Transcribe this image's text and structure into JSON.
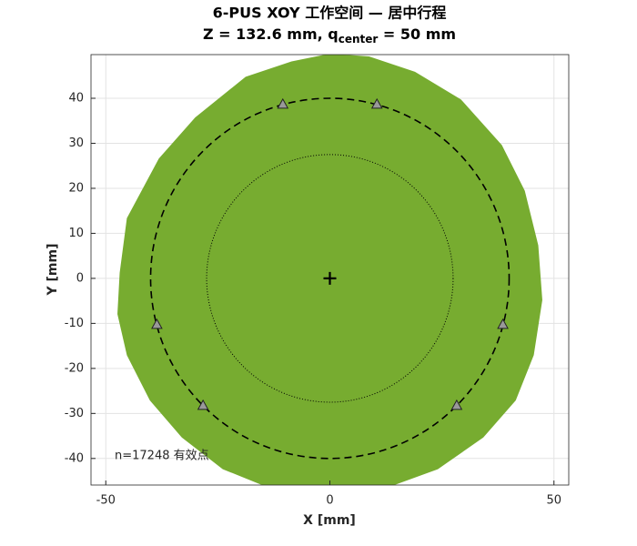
{
  "chart_data": {
    "type": "scatter",
    "title": "6-PUS XOY 工作空间 — 居中行程",
    "subtitle": {
      "before": "Z = 132.6 mm,  q",
      "subscript": "center",
      "after": " = 50 mm"
    },
    "x_label": "X [mm]",
    "y_label": "Y [mm]",
    "annotation": "n=17248 有效点",
    "xlim": [
      -53.3,
      53.3
    ],
    "ylim": [
      -45.9,
      49.7
    ],
    "xticks": [
      -50,
      0,
      50
    ],
    "yticks": [
      -40,
      -30,
      -20,
      -10,
      0,
      10,
      20,
      30,
      40
    ],
    "grid": true,
    "workspace": {
      "color": "#77ac30",
      "x": [
        0,
        -8.5,
        -18.7,
        -29.9,
        -38,
        -45.1,
        -46.7,
        -47.2,
        -45.1,
        -40,
        -32.9,
        -23.8,
        -14.6,
        13.8,
        24,
        34.1,
        41.3,
        45.3,
        47.2,
        46.3,
        43.3,
        38.2,
        29.1,
        18.9,
        8.7
      ],
      "y": [
        49.7,
        48,
        44.6,
        35.6,
        26.5,
        13.3,
        1.2,
        -7.9,
        -17,
        -27,
        -35.2,
        -42.2,
        -45.9,
        -45.9,
        -42.2,
        -35.2,
        -27,
        -17,
        -4.8,
        7.3,
        19.4,
        29.5,
        39.6,
        45.7,
        49.1
      ]
    },
    "circles": [
      {
        "r": 40,
        "style": "dashed",
        "color": "#000000"
      },
      {
        "r": 27.5,
        "style": "dotted",
        "color": "#000000"
      }
    ],
    "joints": {
      "color": "#999999",
      "x": [
        -10.5,
        10.5,
        38.6,
        28.3,
        -28.3,
        -38.6
      ],
      "y": [
        38.6,
        38.6,
        -10.3,
        -28.3,
        -28.3,
        -10.3
      ]
    },
    "center": {
      "x": 0,
      "y": 0,
      "color": "#000000"
    }
  }
}
